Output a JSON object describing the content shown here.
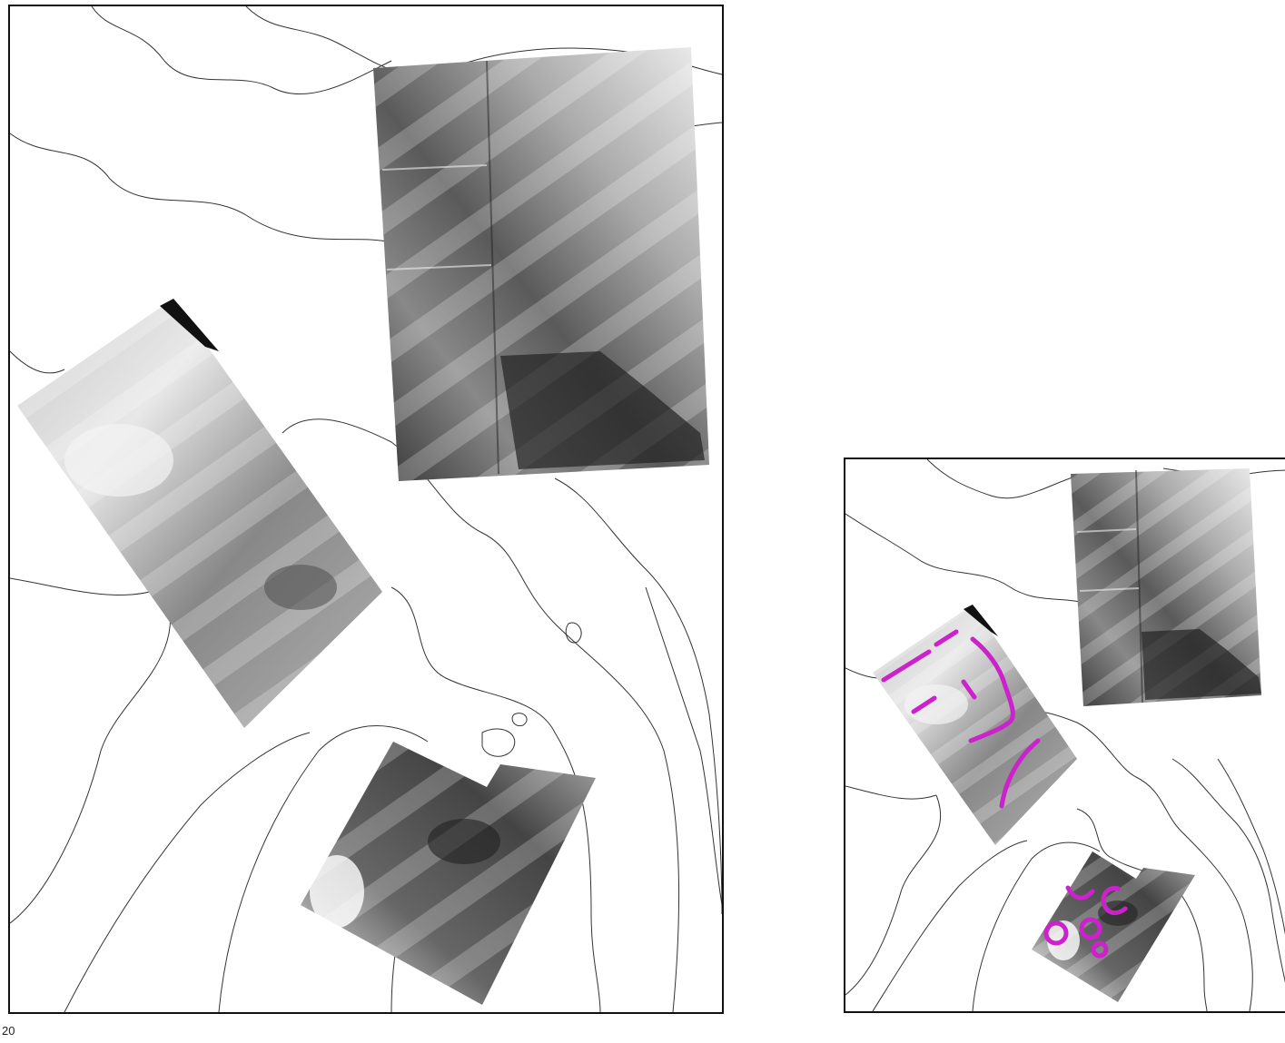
{
  "page": {
    "page_number": "20"
  },
  "colors": {
    "contour_line": "#333333",
    "panel_border": "#111111",
    "annotation": "#cc22cc",
    "background": "#ffffff"
  },
  "map": {
    "type": "geophysical survey overlaid on contour map",
    "panels": [
      {
        "id": "left",
        "annotated": false,
        "survey_blocks": 3
      },
      {
        "id": "right",
        "annotated": true,
        "survey_blocks": 3,
        "annotations": [
          "linear-features",
          "curved-features",
          "circular-features"
        ]
      }
    ]
  }
}
